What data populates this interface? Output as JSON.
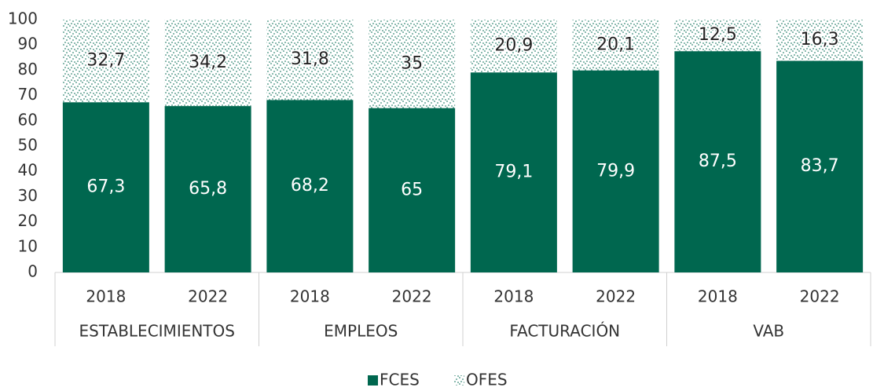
{
  "chart_data": {
    "type": "stacked_bar",
    "categories": [
      "2018",
      "2022",
      "2018",
      "2022",
      "2018",
      "2022",
      "2018",
      "2022"
    ],
    "category_groups": [
      "ESTABLECIMIENTOS",
      "EMPLEOS",
      "FACTURACIÓN",
      "VAB"
    ],
    "series": [
      {
        "name": "FCES",
        "color": "#00674f",
        "values": [
          67.3,
          65.8,
          68.2,
          65,
          79.1,
          79.9,
          87.5,
          83.7
        ],
        "value_labels": [
          "67,3",
          "65,8",
          "68,2",
          "65",
          "79,1",
          "79,9",
          "87,5",
          "83,7"
        ]
      },
      {
        "name": "OFES",
        "color": "#00674f",
        "pattern": "dots",
        "values": [
          32.7,
          34.2,
          31.8,
          35,
          20.9,
          20.1,
          12.5,
          16.3
        ],
        "value_labels": [
          "32,7",
          "34,2",
          "31,8",
          "35",
          "20,9",
          "20,1",
          "12,5",
          "16,3"
        ]
      }
    ],
    "ylim": [
      0,
      100
    ],
    "yticks": [
      0,
      10,
      20,
      30,
      40,
      50,
      60,
      70,
      80,
      90,
      100
    ],
    "grid": false,
    "legend": "bottom"
  }
}
